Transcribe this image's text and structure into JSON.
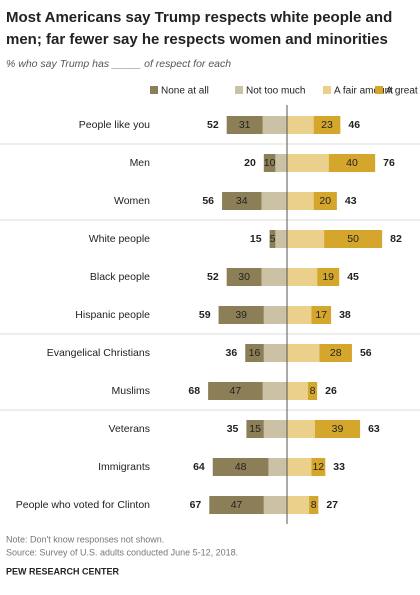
{
  "chart_data": {
    "type": "diverging_bar",
    "title_lines": [
      "Most Americans say Trump respects white people and",
      "men; far fewer say he respects women and minorities"
    ],
    "subtitle": "% who say Trump has _____ of respect for each",
    "categories": [
      "People like you",
      "Men",
      "Women",
      "White people",
      "Black people",
      "Hispanic people",
      "Evangelical Christians",
      "Muslims",
      "Veterans",
      "Immigrants",
      "People who voted for Clinton"
    ],
    "series": [
      {
        "name": "None at all",
        "color": "#8c7f57",
        "side": "left",
        "labeled": true,
        "values": [
          31,
          10,
          34,
          5,
          30,
          39,
          16,
          47,
          15,
          48,
          47
        ]
      },
      {
        "name": "Not too much",
        "color": "#cbc2a6",
        "side": "left",
        "labeled": false,
        "values": [
          21,
          10,
          22,
          10,
          22,
          20,
          20,
          21,
          20,
          16,
          20
        ]
      },
      {
        "name": "A fair amount",
        "color": "#ead08a",
        "side": "right",
        "labeled": false,
        "values": [
          23,
          36,
          23,
          32,
          26,
          21,
          28,
          18,
          24,
          21,
          19
        ]
      },
      {
        "name": "A great deal",
        "color": "#d4a72c",
        "side": "right",
        "labeled": true,
        "values": [
          23,
          40,
          20,
          50,
          19,
          17,
          28,
          8,
          39,
          12,
          8
        ]
      }
    ],
    "totals_left": [
      52,
      20,
      56,
      15,
      52,
      59,
      36,
      68,
      35,
      64,
      67
    ],
    "totals_right": [
      46,
      76,
      43,
      82,
      45,
      38,
      56,
      26,
      63,
      33,
      27
    ],
    "note": "Note: Don't know responses not shown.",
    "source": "Source: Survey of U.S. adults conducted June 5-12, 2018.",
    "credit": "PEW RESEARCH CENTER"
  }
}
